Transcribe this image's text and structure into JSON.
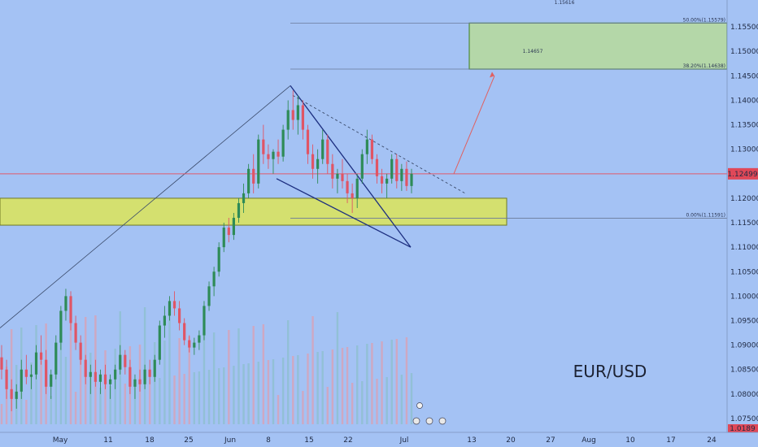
{
  "chart_data": {
    "type": "candlestick",
    "symbol": "EUR/USD",
    "current_price": "1.12499",
    "y_axis_ticks": [
      "1.07500",
      "1.08000",
      "1.08500",
      "1.09000",
      "1.09500",
      "1.10000",
      "1.10500",
      "1.11000",
      "1.11500",
      "1.12000",
      "1.12500",
      "1.13000",
      "1.13500",
      "1.14000",
      "1.14500",
      "1.15000",
      "1.15500"
    ],
    "y_range": [
      1.0735,
      1.1595
    ],
    "x_axis_ticks": [
      "May",
      "11",
      "18",
      "25",
      "Jun",
      "8",
      "15",
      "22",
      "Jul",
      "13",
      "20",
      "27",
      "Aug",
      "10",
      "17",
      "24"
    ],
    "fib_labels": [
      "50.00%(1.15579)",
      "38.20%(1.14638)",
      "0.00%(1.11591)"
    ],
    "top_label": "1.15616",
    "target_label": "1.14657",
    "bottom_price_label": "1.0189",
    "grid": false,
    "series": [
      {
        "values": [
          [
            1.0875,
            1.09,
            1.083,
            1.085
          ],
          [
            1.085,
            1.087,
            1.079,
            1.081
          ],
          [
            1.081,
            1.083,
            1.0765,
            1.079
          ],
          [
            1.079,
            1.082,
            1.077,
            1.0805
          ],
          [
            1.0805,
            1.087,
            1.079,
            1.085
          ],
          [
            1.085,
            1.088,
            1.082,
            1.0835
          ],
          [
            1.0835,
            1.086,
            1.081,
            1.084
          ],
          [
            1.084,
            1.09,
            1.083,
            1.0885
          ],
          [
            1.0885,
            1.092,
            1.086,
            1.087
          ],
          [
            1.087,
            1.089,
            1.08,
            1.0815
          ],
          [
            1.0815,
            1.085,
            1.079,
            1.084
          ],
          [
            1.084,
            1.092,
            1.083,
            1.0905
          ],
          [
            1.0905,
            1.098,
            1.089,
            1.097
          ],
          [
            1.097,
            1.1015,
            1.095,
            1.1
          ],
          [
            1.1,
            1.101,
            1.093,
            1.0945
          ],
          [
            1.0945,
            1.096,
            1.089,
            1.0905
          ],
          [
            1.0905,
            1.092,
            1.086,
            1.087
          ],
          [
            1.087,
            1.088,
            1.082,
            1.0835
          ],
          [
            1.0835,
            1.086,
            1.08,
            1.0845
          ],
          [
            1.0845,
            1.087,
            1.0815,
            1.0825
          ],
          [
            1.0825,
            1.085,
            1.08,
            1.084
          ],
          [
            1.084,
            1.086,
            1.081,
            1.082
          ],
          [
            1.082,
            1.084,
            1.079,
            1.083
          ],
          [
            1.083,
            1.086,
            1.081,
            1.085
          ],
          [
            1.085,
            1.09,
            1.084,
            1.088
          ],
          [
            1.088,
            1.089,
            1.084,
            1.0855
          ],
          [
            1.0855,
            1.087,
            1.08,
            1.0815
          ],
          [
            1.0815,
            1.084,
            1.079,
            1.083
          ],
          [
            1.083,
            1.085,
            1.0805,
            1.082
          ],
          [
            1.082,
            1.086,
            1.081,
            1.085
          ],
          [
            1.085,
            1.087,
            1.082,
            1.0835
          ],
          [
            1.0835,
            1.088,
            1.0825,
            1.087
          ],
          [
            1.087,
            1.095,
            1.086,
            1.094
          ],
          [
            1.094,
            1.098,
            1.0915,
            1.096
          ],
          [
            1.096,
            1.1,
            1.095,
            1.099
          ],
          [
            1.099,
            1.101,
            1.096,
            1.0975
          ],
          [
            1.0975,
            1.099,
            1.093,
            1.0945
          ],
          [
            1.0945,
            1.0955,
            1.09,
            1.091
          ],
          [
            1.091,
            1.092,
            1.0885,
            1.0895
          ],
          [
            1.0895,
            1.0915,
            1.088,
            1.0905
          ],
          [
            1.0905,
            1.093,
            1.089,
            1.092
          ],
          [
            1.092,
            1.099,
            1.091,
            1.098
          ],
          [
            1.098,
            1.103,
            1.097,
            1.102
          ],
          [
            1.102,
            1.106,
            1.1,
            1.105
          ],
          [
            1.105,
            1.111,
            1.104,
            1.11
          ],
          [
            1.11,
            1.115,
            1.109,
            1.114
          ],
          [
            1.114,
            1.116,
            1.111,
            1.1125
          ],
          [
            1.1125,
            1.117,
            1.1115,
            1.116
          ],
          [
            1.116,
            1.12,
            1.115,
            1.119
          ],
          [
            1.119,
            1.123,
            1.117,
            1.121
          ],
          [
            1.121,
            1.127,
            1.12,
            1.126
          ],
          [
            1.126,
            1.129,
            1.121,
            1.123
          ],
          [
            1.123,
            1.133,
            1.122,
            1.132
          ],
          [
            1.132,
            1.135,
            1.127,
            1.129
          ],
          [
            1.129,
            1.131,
            1.126,
            1.128
          ],
          [
            1.128,
            1.13,
            1.125,
            1.1295
          ],
          [
            1.1295,
            1.132,
            1.127,
            1.1285
          ],
          [
            1.1285,
            1.135,
            1.1275,
            1.134
          ],
          [
            1.134,
            1.14,
            1.132,
            1.138
          ],
          [
            1.138,
            1.142,
            1.134,
            1.136
          ],
          [
            1.136,
            1.141,
            1.133,
            1.139
          ],
          [
            1.139,
            1.14,
            1.132,
            1.134
          ],
          [
            1.134,
            1.135,
            1.127,
            1.129
          ],
          [
            1.129,
            1.131,
            1.124,
            1.126
          ],
          [
            1.126,
            1.13,
            1.123,
            1.128
          ],
          [
            1.128,
            1.134,
            1.127,
            1.132
          ],
          [
            1.132,
            1.133,
            1.125,
            1.127
          ],
          [
            1.127,
            1.129,
            1.122,
            1.124
          ],
          [
            1.124,
            1.126,
            1.121,
            1.125
          ],
          [
            1.125,
            1.128,
            1.122,
            1.1235
          ],
          [
            1.1235,
            1.125,
            1.119,
            1.121
          ],
          [
            1.121,
            1.123,
            1.117,
            1.12
          ],
          [
            1.12,
            1.125,
            1.118,
            1.124
          ],
          [
            1.124,
            1.13,
            1.123,
            1.129
          ],
          [
            1.129,
            1.134,
            1.127,
            1.132
          ],
          [
            1.132,
            1.133,
            1.127,
            1.128
          ],
          [
            1.128,
            1.129,
            1.123,
            1.1245
          ],
          [
            1.1245,
            1.126,
            1.121,
            1.123
          ],
          [
            1.123,
            1.125,
            1.12,
            1.124
          ],
          [
            1.124,
            1.129,
            1.123,
            1.128
          ],
          [
            1.128,
            1.129,
            1.122,
            1.1235
          ],
          [
            1.1235,
            1.127,
            1.1215,
            1.126
          ],
          [
            1.126,
            1.1275,
            1.1215,
            1.1225
          ],
          [
            1.1225,
            1.126,
            1.121,
            1.125
          ]
        ]
      }
    ]
  }
}
